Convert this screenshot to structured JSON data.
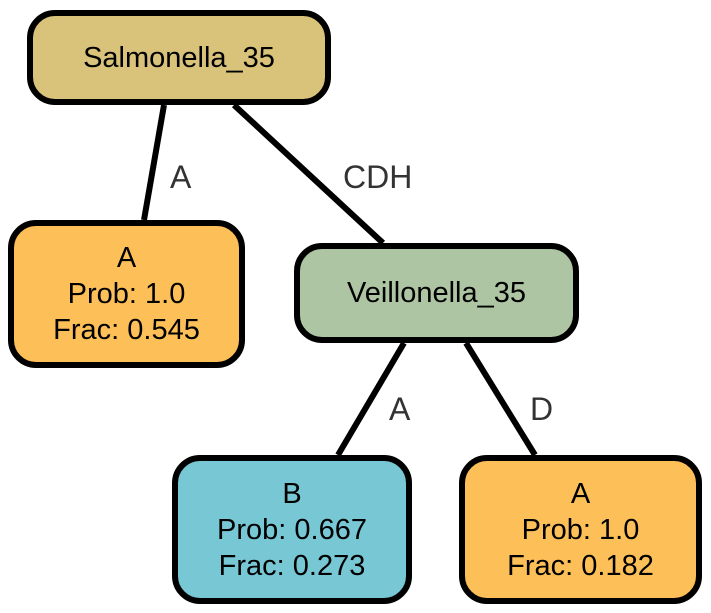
{
  "tree": {
    "root": {
      "label": "Salmonella_35",
      "color": "#D9C27A"
    },
    "inner": {
      "label": "Veillonella_35",
      "color": "#ADC5A3"
    },
    "leaves": {
      "a1": {
        "class": "A",
        "prob": "Prob: 1.0",
        "frac": "Frac: 0.545",
        "color": "#FDBF58"
      },
      "b": {
        "class": "B",
        "prob": "Prob: 0.667",
        "frac": "Frac: 0.273",
        "color": "#78C7D5"
      },
      "a2": {
        "class": "A",
        "prob": "Prob: 1.0",
        "frac": "Frac: 0.182",
        "color": "#FDBF58"
      }
    },
    "edges": {
      "root_to_a1": "A",
      "root_to_inner": "CDH",
      "inner_to_b": "A",
      "inner_to_a2": "D"
    }
  }
}
